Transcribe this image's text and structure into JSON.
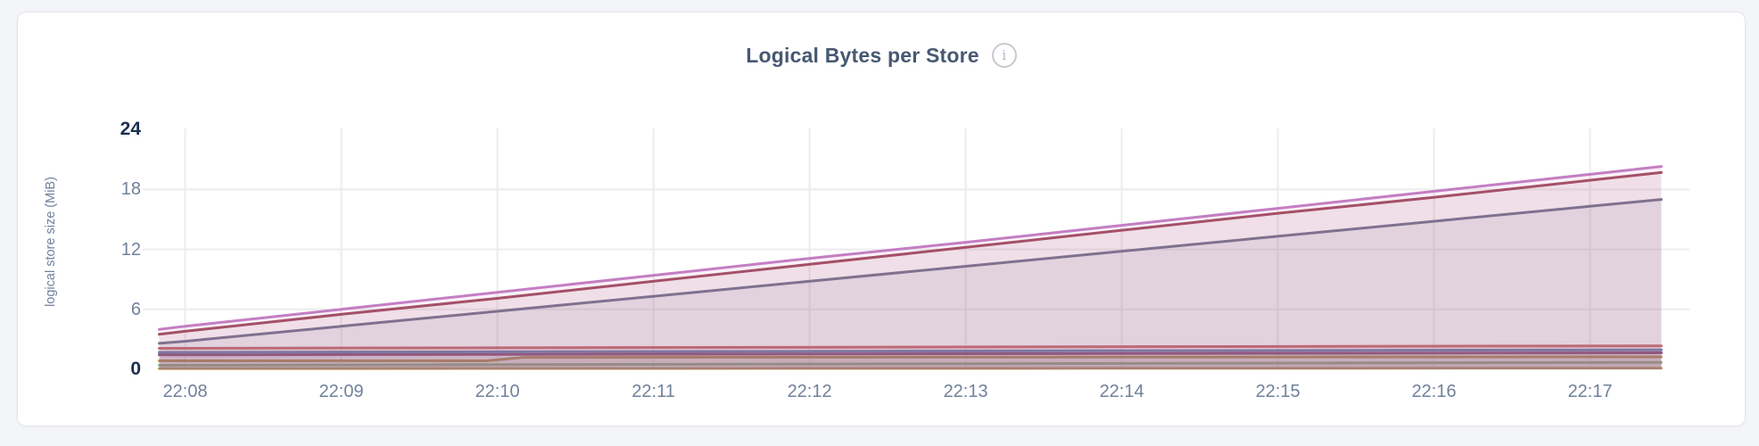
{
  "page": {
    "background_color": "#f4f5f9"
  },
  "card": {
    "background_color": "#ffffff",
    "border_color": "#e3e5ea"
  },
  "chart": {
    "title": "Logical Bytes per Store",
    "info_icon_glyph": "i",
    "y_axis": {
      "label": "logical store size (MiB)",
      "ticks": [
        {
          "value": 24,
          "label": "24",
          "emphasized": true
        },
        {
          "value": 18,
          "label": "18",
          "emphasized": false
        },
        {
          "value": 12,
          "label": "12",
          "emphasized": false
        },
        {
          "value": 6,
          "label": "6",
          "emphasized": false
        },
        {
          "value": 0,
          "label": "0",
          "emphasized": true
        }
      ]
    },
    "x_axis": {
      "ticks": [
        "22:08",
        "22:09",
        "22:10",
        "22:11",
        "22:12",
        "22:13",
        "22:14",
        "22:15",
        "22:16",
        "22:17"
      ]
    },
    "colors": {
      "title": "#475872",
      "tick_muted": "#71809b",
      "tick_emphasized": "#1b2f52",
      "gridline": "#ececec",
      "info_icon": "#c6cad1"
    }
  },
  "chart_data": {
    "type": "area",
    "title": "Logical Bytes per Store",
    "xlabel": "",
    "ylabel": "logical store size (MiB)",
    "ylim": [
      0,
      24
    ],
    "y_ticks": [
      0,
      6,
      12,
      18,
      24
    ],
    "x_tick_labels": [
      "22:08",
      "22:09",
      "22:10",
      "22:11",
      "22:12",
      "22:13",
      "22:14",
      "22:15",
      "22:16",
      "22:17"
    ],
    "x_unit": "seconds_from_window_start_22:07:50",
    "x_domain_seconds": [
      0,
      578
    ],
    "first_tick_offset_seconds": 10,
    "tick_interval_seconds": 60,
    "grid": true,
    "legend_position": "none",
    "line_width": 3,
    "fill_opacity": 0.11,
    "series": [
      {
        "name": "series-1",
        "color": "#c09e62",
        "points": [
          [
            0,
            0.06
          ],
          [
            578,
            0.12
          ]
        ]
      },
      {
        "name": "series-2",
        "color": "#8fb78c",
        "points": [
          [
            0,
            0.4
          ],
          [
            578,
            0.7
          ]
        ]
      },
      {
        "name": "series-3",
        "color": "#b9934f",
        "points": [
          [
            0,
            0.85
          ],
          [
            126,
            0.85
          ],
          [
            140,
            1.2
          ],
          [
            578,
            1.25
          ]
        ]
      },
      {
        "name": "series-4",
        "color": "#8c4a73",
        "points": [
          [
            0,
            1.45
          ],
          [
            578,
            1.65
          ]
        ]
      },
      {
        "name": "series-5",
        "color": "#687fb3",
        "points": [
          [
            0,
            1.7
          ],
          [
            578,
            1.95
          ]
        ]
      },
      {
        "name": "series-6",
        "color": "#cb6a6d",
        "points": [
          [
            0,
            2.1
          ],
          [
            578,
            2.35
          ]
        ]
      },
      {
        "name": "series-7",
        "color": "#717590",
        "points": [
          [
            0,
            2.6
          ],
          [
            10,
            2.8
          ],
          [
            70,
            4.3
          ],
          [
            130,
            5.8
          ],
          [
            190,
            7.3
          ],
          [
            250,
            8.8
          ],
          [
            310,
            10.3
          ],
          [
            370,
            11.8
          ],
          [
            430,
            13.3
          ],
          [
            490,
            14.8
          ],
          [
            550,
            16.3
          ],
          [
            578,
            17.0
          ]
        ]
      },
      {
        "name": "series-8",
        "color": "#a04b5e",
        "points": [
          [
            0,
            3.5
          ],
          [
            10,
            3.8
          ],
          [
            70,
            5.5
          ],
          [
            130,
            7.1
          ],
          [
            190,
            8.8
          ],
          [
            250,
            10.5
          ],
          [
            310,
            12.2
          ],
          [
            370,
            13.9
          ],
          [
            430,
            15.6
          ],
          [
            490,
            17.2
          ],
          [
            550,
            18.9
          ],
          [
            578,
            19.7
          ]
        ]
      },
      {
        "name": "series-9",
        "color": "#c47ec3",
        "points": [
          [
            0,
            4.0
          ],
          [
            10,
            4.3
          ],
          [
            70,
            6.0
          ],
          [
            130,
            7.7
          ],
          [
            190,
            9.4
          ],
          [
            250,
            11.1
          ],
          [
            310,
            12.7
          ],
          [
            370,
            14.4
          ],
          [
            430,
            16.1
          ],
          [
            490,
            17.8
          ],
          [
            550,
            19.5
          ],
          [
            578,
            20.3
          ]
        ]
      }
    ]
  }
}
